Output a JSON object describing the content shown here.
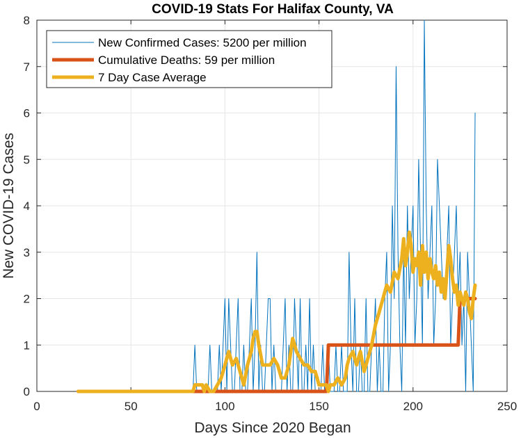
{
  "chart_data": {
    "type": "line",
    "title": "COVID-19 Stats For Halifax County, VA",
    "xlabel": "Days Since 2020 Began",
    "ylabel": "New COVID-19 Cases",
    "xlim": [
      0,
      250
    ],
    "ylim": [
      0,
      8
    ],
    "x_ticks": [
      0,
      50,
      100,
      150,
      200,
      250
    ],
    "y_ticks": [
      0,
      1,
      2,
      3,
      4,
      5,
      6,
      7,
      8
    ],
    "grid": true,
    "legend_position": "top-left",
    "series": [
      {
        "name": "New Confirmed Cases: 5200 per million",
        "color": "#0072BD",
        "x": [
          22,
          83,
          84,
          85,
          86,
          87,
          88,
          89,
          90,
          91,
          92,
          93,
          94,
          95,
          96,
          97,
          98,
          99,
          100,
          101,
          102,
          103,
          104,
          105,
          106,
          107,
          108,
          109,
          110,
          111,
          112,
          113,
          114,
          115,
          116,
          117,
          118,
          119,
          120,
          121,
          122,
          123,
          124,
          125,
          126,
          127,
          128,
          129,
          130,
          131,
          132,
          133,
          134,
          135,
          136,
          137,
          138,
          139,
          140,
          141,
          142,
          143,
          144,
          145,
          146,
          147,
          148,
          149,
          150,
          151,
          152,
          153,
          154,
          155,
          156,
          157,
          158,
          159,
          160,
          161,
          162,
          163,
          164,
          165,
          166,
          167,
          168,
          169,
          170,
          171,
          172,
          173,
          174,
          175,
          176,
          177,
          178,
          179,
          180,
          181,
          182,
          183,
          184,
          185,
          186,
          187,
          188,
          189,
          190,
          191,
          192,
          193,
          194,
          195,
          196,
          197,
          198,
          199,
          200,
          201,
          202,
          203,
          204,
          205,
          206,
          207,
          208,
          209,
          210,
          211,
          212,
          213,
          214,
          215,
          216,
          217,
          218,
          219,
          220,
          221,
          222,
          223,
          224,
          225,
          226,
          227,
          228,
          229,
          230,
          231,
          232,
          233
        ],
        "y": [
          0,
          0,
          1,
          0,
          0,
          0,
          0,
          0,
          0,
          0,
          1,
          0,
          0,
          0,
          0,
          1,
          0,
          1,
          2,
          0,
          2,
          1,
          0,
          0,
          1,
          2,
          0,
          0,
          1,
          0,
          0,
          1,
          2,
          0,
          1,
          3,
          0,
          1,
          0,
          0,
          1,
          2,
          2,
          0,
          1,
          0,
          0,
          0,
          0,
          1,
          2,
          0,
          1,
          0,
          0,
          2,
          1,
          0,
          2,
          0,
          0,
          1,
          0,
          2,
          0,
          1,
          0,
          0,
          0,
          0,
          1,
          0,
          0,
          1,
          0,
          0,
          0,
          1,
          0,
          0,
          1,
          0,
          0,
          0,
          3,
          1,
          0,
          2,
          0,
          0,
          1,
          0,
          0,
          2,
          0,
          0,
          1,
          1,
          2,
          0,
          1,
          0,
          0,
          2,
          3,
          0,
          1,
          4,
          2,
          7,
          3,
          1,
          0,
          3,
          1,
          4,
          2,
          3,
          4,
          1,
          2,
          5,
          3,
          1,
          8,
          4,
          2,
          3,
          4,
          1,
          2,
          5,
          4,
          3,
          2,
          2,
          3,
          4,
          1,
          2,
          3,
          4,
          2,
          3,
          1,
          2,
          0,
          3,
          2,
          1,
          0,
          6
        ]
      },
      {
        "name": "Cumulative Deaths: 59 per million",
        "color": "#D95319",
        "x": [
          22,
          154,
          155,
          224,
          225,
          233
        ],
        "y": [
          0,
          0,
          1,
          1,
          2,
          2
        ]
      },
      {
        "name": "7 Day Case Average",
        "color": "#EDB120",
        "x": [
          22,
          83,
          84,
          86,
          88,
          89,
          90,
          92,
          94,
          96,
          98,
          99,
          100,
          102,
          104,
          106,
          108,
          109,
          110,
          112,
          114,
          115,
          116,
          117,
          118,
          120,
          122,
          124,
          126,
          128,
          130,
          132,
          134,
          135,
          136,
          137,
          138,
          140,
          142,
          144,
          146,
          148,
          150,
          152,
          154,
          155,
          156,
          158,
          160,
          162,
          164,
          165,
          166,
          168,
          170,
          172,
          174,
          176,
          178,
          180,
          182,
          184,
          186,
          188,
          190,
          192,
          194,
          195,
          196,
          197,
          198,
          199,
          200,
          201,
          202,
          203,
          204,
          205,
          206,
          207,
          208,
          209,
          210,
          211,
          212,
          213,
          214,
          215,
          216,
          217,
          218,
          219,
          220,
          221,
          222,
          223,
          224,
          225,
          226,
          227,
          228,
          229,
          230,
          231,
          232,
          233
        ],
        "y": [
          0,
          0,
          0.14,
          0.14,
          0.14,
          0,
          0.14,
          0,
          0,
          0.14,
          0.29,
          0.43,
          0.57,
          0.86,
          0.57,
          0.71,
          0.43,
          0.29,
          0.14,
          0.57,
          0.86,
          1.14,
          1.29,
          1.29,
          1.0,
          0.57,
          0.57,
          0.57,
          0.71,
          0.57,
          0.29,
          0.29,
          0.57,
          0.86,
          1.14,
          1.0,
          0.86,
          0.71,
          0.57,
          0.57,
          0.43,
          0.43,
          0.14,
          0.14,
          0.14,
          0,
          0.14,
          0.14,
          0.29,
          0.14,
          0.29,
          0.57,
          0.71,
          0.86,
          0.57,
          0.86,
          0.43,
          0.71,
          1.0,
          1.43,
          1.71,
          2.0,
          2.29,
          2.14,
          2.57,
          2.43,
          2.86,
          3.29,
          2.71,
          3.0,
          3.43,
          3.14,
          2.57,
          2.86,
          2.71,
          3.0,
          2.29,
          3.14,
          2.57,
          3.0,
          2.43,
          2.86,
          2.57,
          2.43,
          2.71,
          2.29,
          2.57,
          2.14,
          2.43,
          2.0,
          2.57,
          3.14,
          2.86,
          2.43,
          2.14,
          2.29,
          1.86,
          2.14,
          2.0,
          1.86,
          2.14,
          2.0,
          1.71,
          1.57,
          2.0,
          2.29
        ]
      }
    ]
  }
}
